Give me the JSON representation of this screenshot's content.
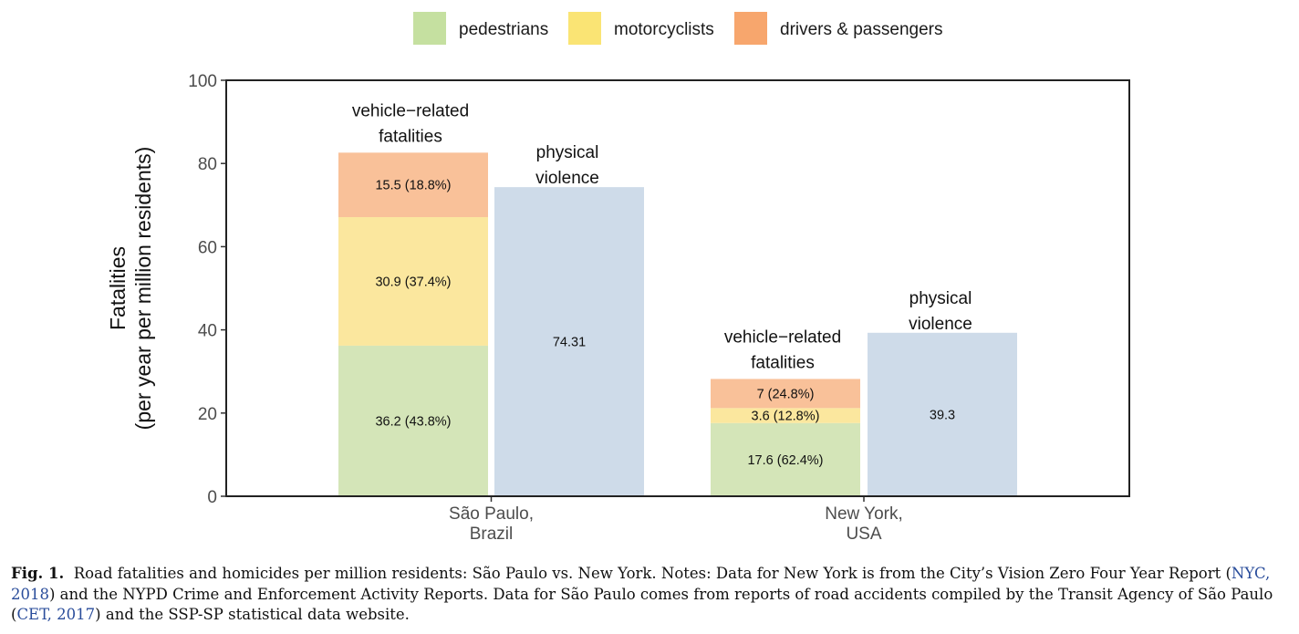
{
  "chart_data": {
    "type": "bar",
    "stacked": true,
    "colors": {
      "pedestrians": "#d4e5b8",
      "motorcyclists": "#fbe79e",
      "drivers": "#f9c199",
      "violence": "#cedbe9"
    },
    "legend": {
      "position": "top",
      "items": [
        {
          "key": "pedestrians",
          "label": "pedestrians",
          "color": "#c5e0a0"
        },
        {
          "key": "motorcyclists",
          "label": "motorcyclists",
          "color": "#fae474"
        },
        {
          "key": "drivers",
          "label": "drivers & passengers",
          "color": "#f7a66d"
        }
      ]
    },
    "ylabel_line1": "Fatalities",
    "ylabel_line2": "(per year per million residents)",
    "ylim": [
      0,
      100
    ],
    "yticks": [
      0,
      20,
      40,
      60,
      80,
      100
    ],
    "grid": false,
    "groups": [
      {
        "label_line1": "São Paulo,",
        "label_line2": "Brazil",
        "vehicle": {
          "title_line1": "vehicle−related",
          "title_line2": "fatalities",
          "segments": [
            {
              "key": "pedestrians",
              "value": 36.2,
              "label": "36.2 (43.8%)"
            },
            {
              "key": "motorcyclists",
              "value": 30.9,
              "label": "30.9 (37.4%)"
            },
            {
              "key": "drivers",
              "value": 15.5,
              "label": "15.5 (18.8%)"
            }
          ]
        },
        "violence": {
          "title_line1": "physical",
          "title_line2": "violence",
          "value": 74.31,
          "label": "74.31"
        }
      },
      {
        "label_line1": "New York,",
        "label_line2": "USA",
        "vehicle": {
          "title_line1": "vehicle−related",
          "title_line2": "fatalities",
          "segments": [
            {
              "key": "pedestrians",
              "value": 17.6,
              "label": "17.6 (62.4%)"
            },
            {
              "key": "motorcyclists",
              "value": 3.6,
              "label": "3.6 (12.8%)"
            },
            {
              "key": "drivers",
              "value": 7,
              "label": "7 (24.8%)"
            }
          ]
        },
        "violence": {
          "title_line1": "physical",
          "title_line2": "violence",
          "value": 39.3,
          "label": "39.3"
        }
      }
    ]
  },
  "caption": {
    "fig_label": "Fig. 1.",
    "part1": "Road fatalities and homicides per million residents: São Paulo vs. New York. Notes: Data for New York is from the City’s Vision Zero Four Year Report (",
    "ref1": "NYC, 2018",
    "part2": ") and the NYPD Crime and Enforcement Activity Reports. Data for São Paulo comes from reports of road accidents compiled by the Transit Agency of São Paulo (",
    "ref2": "CET, 2017",
    "part3": ") and the SSP-SP statistical data website."
  }
}
